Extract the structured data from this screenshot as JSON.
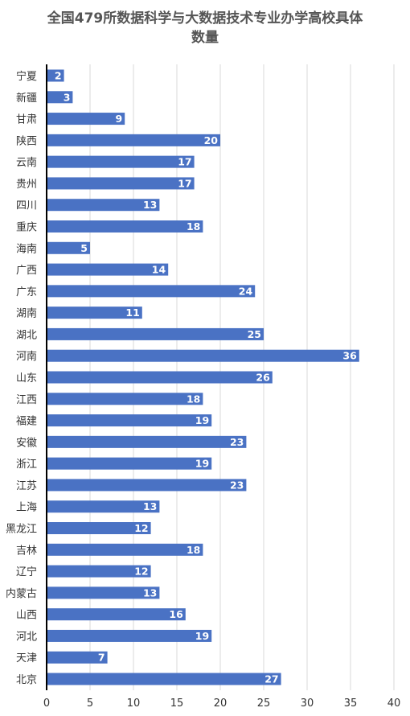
{
  "chart_data": {
    "type": "bar",
    "orientation": "horizontal",
    "title_lines": [
      "全国479所数据科学与大数据技术专业办学高校具体",
      "数量"
    ],
    "categories": [
      "宁夏",
      "新疆",
      "甘肃",
      "陕西",
      "云南",
      "贵州",
      "四川",
      "重庆",
      "海南",
      "广西",
      "广东",
      "湖南",
      "湖北",
      "河南",
      "山东",
      "江西",
      "福建",
      "安徽",
      "浙江",
      "江苏",
      "上海",
      "黑龙江",
      "吉林",
      "辽宁",
      "内蒙古",
      "山西",
      "河北",
      "天津",
      "北京"
    ],
    "values": [
      2,
      3,
      9,
      20,
      17,
      17,
      13,
      18,
      5,
      14,
      24,
      11,
      25,
      36,
      26,
      18,
      19,
      23,
      19,
      23,
      13,
      12,
      18,
      12,
      13,
      16,
      19,
      7,
      27
    ],
    "xlim": [
      0,
      40
    ],
    "xticks": [
      0,
      5,
      10,
      15,
      20,
      25,
      30,
      35,
      40
    ],
    "grid": true,
    "legend": "none",
    "data_labels": true,
    "colors": {
      "bar": "#4a72c4",
      "bar_label": "#ffffff",
      "grid": "#d9d9d9",
      "axis": "#000000",
      "tick_label": "#333333",
      "category_label": "#333333"
    }
  }
}
